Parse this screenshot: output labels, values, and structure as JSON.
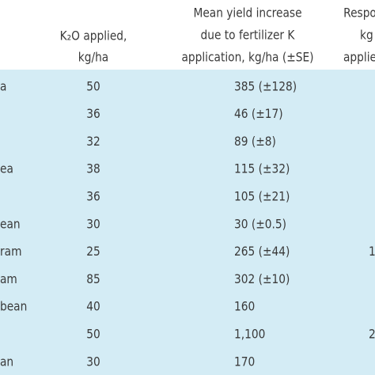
{
  "header": {
    "columns": [
      {
        "lines": [
          "K₂O applied,",
          "kg/ha"
        ]
      },
      {
        "lines": [
          "Mean yield increase",
          "due to fertilizer K",
          "application, kg/ha (±SE)"
        ]
      },
      {
        "lines": [
          "Respo",
          "kg",
          "applie"
        ]
      }
    ]
  },
  "table": {
    "rows": [
      {
        "crop": "a",
        "k2o": 50,
        "yield": "385 (±128)"
      },
      {
        "k2o": 36,
        "yield": "46 (±17)"
      },
      {
        "k2o": 32,
        "yield": "89 (±8)"
      },
      {
        "crop": "ea",
        "k2o": 38,
        "yield": "115 (±32)"
      },
      {
        "k2o": 36,
        "yield": "105 (±21)"
      },
      {
        "crop": "ean",
        "k2o": 30,
        "yield": "30 (±0.5)"
      },
      {
        "crop": "ram",
        "k2o": 25,
        "yield": "265 (±44)",
        "response": "1"
      },
      {
        "crop": "am",
        "k2o": 85,
        "yield": "302 (±10)"
      },
      {
        "crop": "bean",
        "k2o": 40,
        "yield": "160"
      },
      {
        "k2o": 50,
        "yield": "1,100",
        "response": "2"
      },
      {
        "crop": "an",
        "k2o": 30,
        "yield": "170"
      }
    ]
  }
}
